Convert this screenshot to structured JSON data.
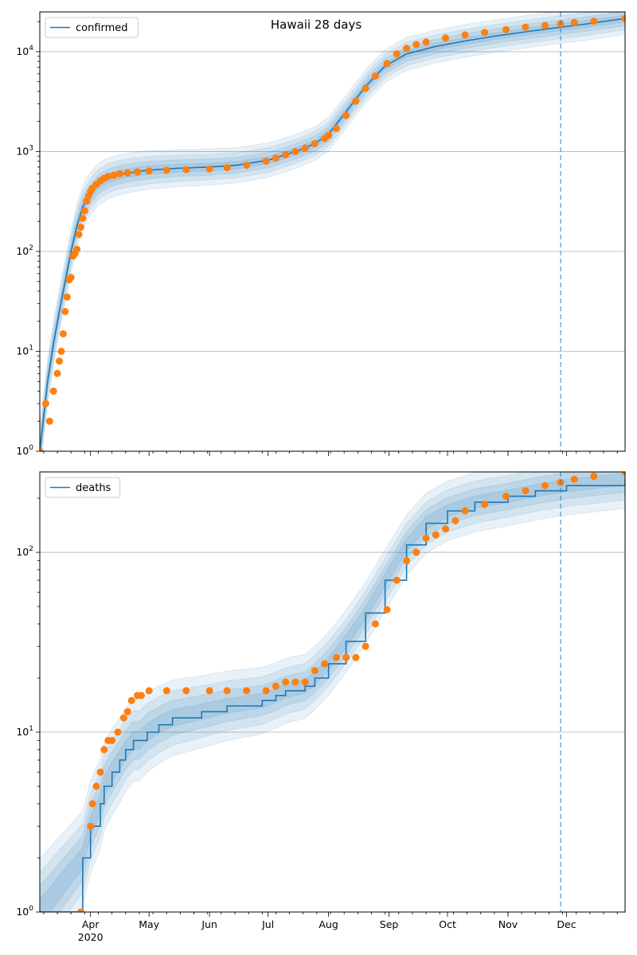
{
  "figure": {
    "title": "Hawaii 28 days"
  },
  "colors": {
    "model_line": "#1f77b4",
    "observed_points": "#ff7f0e",
    "band": "#1f77b4",
    "grid": "#b0b0b0",
    "vline": "#1f77b4"
  },
  "x_axis": {
    "month_labels": [
      "Apr",
      "May",
      "Jun",
      "Jul",
      "Aug",
      "Sep",
      "Oct",
      "Nov",
      "Dec"
    ],
    "year_label": "2020"
  },
  "chart_data": [
    {
      "type": "scatter",
      "panel": "top",
      "title": "",
      "legend": [
        "confirmed"
      ],
      "legend_position": "top-left",
      "y_scale": "log",
      "ylim": [
        1,
        25000
      ],
      "xlim": [
        "2020-03-06",
        "2020-12-31"
      ],
      "grid": "horizontal",
      "vline": "2020-11-28",
      "y_tick_labels": [
        "10^0",
        "10^1",
        "10^2",
        "10^3",
        "10^4"
      ],
      "series": [
        {
          "name": "confirmed",
          "kind": "line",
          "x": [
            "2020-03-06",
            "2020-03-10",
            "2020-03-13",
            "2020-03-16",
            "2020-03-19",
            "2020-03-22",
            "2020-03-25",
            "2020-03-28",
            "2020-04-01",
            "2020-04-05",
            "2020-04-10",
            "2020-04-15",
            "2020-04-20",
            "2020-04-30",
            "2020-05-15",
            "2020-06-01",
            "2020-06-15",
            "2020-07-01",
            "2020-07-15",
            "2020-07-25",
            "2020-08-01",
            "2020-08-10",
            "2020-08-20",
            "2020-08-30",
            "2020-09-10",
            "2020-09-25",
            "2020-10-10",
            "2020-10-25",
            "2020-11-10",
            "2020-11-25",
            "2020-12-10",
            "2020-12-31"
          ],
          "y": [
            1,
            5,
            12,
            25,
            50,
            100,
            180,
            280,
            380,
            470,
            540,
            580,
            610,
            650,
            680,
            700,
            730,
            820,
            1000,
            1200,
            1500,
            2500,
            4500,
            7200,
            9500,
            11300,
            12800,
            14300,
            15800,
            17300,
            18800,
            21500
          ]
        },
        {
          "name": "observed",
          "kind": "points",
          "x": [
            "2020-03-06",
            "2020-03-09",
            "2020-03-11",
            "2020-03-13",
            "2020-03-15",
            "2020-03-16",
            "2020-03-17",
            "2020-03-18",
            "2020-03-19",
            "2020-03-20",
            "2020-03-21",
            "2020-03-22",
            "2020-03-23",
            "2020-03-24",
            "2020-03-25",
            "2020-03-26",
            "2020-03-27",
            "2020-03-28",
            "2020-03-29",
            "2020-03-30",
            "2020-03-31",
            "2020-04-01",
            "2020-04-02",
            "2020-04-04",
            "2020-04-06",
            "2020-04-08",
            "2020-04-10",
            "2020-04-13",
            "2020-04-16",
            "2020-04-20",
            "2020-04-25",
            "2020-05-01",
            "2020-05-10",
            "2020-05-20",
            "2020-06-01",
            "2020-06-10",
            "2020-06-20",
            "2020-06-30",
            "2020-07-05",
            "2020-07-10",
            "2020-07-15",
            "2020-07-20",
            "2020-07-25",
            "2020-07-30",
            "2020-08-01",
            "2020-08-05",
            "2020-08-10",
            "2020-08-15",
            "2020-08-20",
            "2020-08-25",
            "2020-08-31",
            "2020-09-05",
            "2020-09-10",
            "2020-09-15",
            "2020-09-20",
            "2020-09-30",
            "2020-10-10",
            "2020-10-20",
            "2020-10-31",
            "2020-11-10",
            "2020-11-20",
            "2020-11-28",
            "2020-12-05",
            "2020-12-15",
            "2020-12-31"
          ],
          "y": [
            1,
            3,
            2,
            4,
            6,
            8,
            10,
            15,
            25,
            35,
            52,
            55,
            90,
            95,
            105,
            148,
            175,
            215,
            255,
            320,
            360,
            400,
            430,
            470,
            510,
            540,
            565,
            580,
            600,
            610,
            625,
            640,
            650,
            660,
            670,
            690,
            730,
            800,
            860,
            930,
            1000,
            1080,
            1200,
            1350,
            1450,
            1700,
            2300,
            3200,
            4300,
            5700,
            7600,
            9500,
            10800,
            11800,
            12500,
            13700,
            14700,
            15600,
            16600,
            17600,
            18300,
            19000,
            19600,
            20200,
            21500
          ]
        }
      ]
    },
    {
      "type": "scatter",
      "panel": "bottom",
      "title": "",
      "legend": [
        "deaths"
      ],
      "legend_position": "top-left",
      "y_scale": "log",
      "ylim": [
        1,
        280
      ],
      "xlim": [
        "2020-03-06",
        "2020-12-31"
      ],
      "grid": "horizontal",
      "vline": "2020-11-28",
      "y_tick_labels": [
        "10^0",
        "10^1",
        "10^2"
      ],
      "series": [
        {
          "name": "deaths",
          "kind": "step",
          "x": [
            "2020-03-06",
            "2020-03-28",
            "2020-04-01",
            "2020-04-06",
            "2020-04-08",
            "2020-04-12",
            "2020-04-16",
            "2020-04-19",
            "2020-04-23",
            "2020-04-26",
            "2020-04-30",
            "2020-05-06",
            "2020-05-13",
            "2020-05-28",
            "2020-06-10",
            "2020-06-28",
            "2020-07-05",
            "2020-07-10",
            "2020-07-20",
            "2020-07-25",
            "2020-08-01",
            "2020-08-10",
            "2020-08-20",
            "2020-08-30",
            "2020-09-10",
            "2020-09-20",
            "2020-10-01",
            "2020-10-15",
            "2020-11-01",
            "2020-11-15",
            "2020-12-01",
            "2020-12-31"
          ],
          "y": [
            1,
            2,
            3,
            4,
            5,
            6,
            7,
            8,
            9,
            9,
            10,
            11,
            12,
            13,
            14,
            15,
            16,
            17,
            18,
            20,
            24,
            32,
            46,
            70,
            110,
            145,
            170,
            190,
            205,
            220,
            235,
            255
          ]
        },
        {
          "name": "observed",
          "kind": "points",
          "x": [
            "2020-03-27",
            "2020-04-01",
            "2020-04-02",
            "2020-04-04",
            "2020-04-06",
            "2020-04-08",
            "2020-04-10",
            "2020-04-12",
            "2020-04-15",
            "2020-04-18",
            "2020-04-20",
            "2020-04-22",
            "2020-04-25",
            "2020-04-27",
            "2020-05-01",
            "2020-05-10",
            "2020-05-20",
            "2020-06-01",
            "2020-06-10",
            "2020-06-20",
            "2020-06-30",
            "2020-07-05",
            "2020-07-10",
            "2020-07-15",
            "2020-07-20",
            "2020-07-25",
            "2020-07-30",
            "2020-08-05",
            "2020-08-10",
            "2020-08-15",
            "2020-08-20",
            "2020-08-25",
            "2020-08-31",
            "2020-09-05",
            "2020-09-10",
            "2020-09-15",
            "2020-09-20",
            "2020-09-25",
            "2020-09-30",
            "2020-10-05",
            "2020-10-10",
            "2020-10-20",
            "2020-10-31",
            "2020-11-10",
            "2020-11-20",
            "2020-11-28",
            "2020-12-05",
            "2020-12-15",
            "2020-12-31"
          ],
          "y": [
            1,
            3,
            4,
            5,
            6,
            8,
            9,
            9,
            10,
            12,
            13,
            15,
            16,
            16,
            17,
            17,
            17,
            17,
            17,
            17,
            17,
            18,
            19,
            19,
            19,
            22,
            24,
            26,
            26,
            26,
            30,
            40,
            48,
            70,
            90,
            100,
            120,
            125,
            135,
            150,
            170,
            185,
            205,
            220,
            235,
            245,
            255,
            265,
            280
          ]
        }
      ]
    }
  ]
}
